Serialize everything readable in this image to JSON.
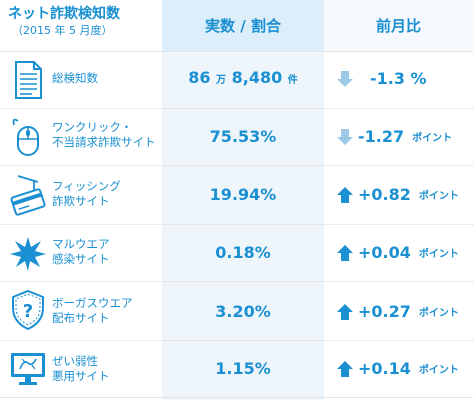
{
  "header": {
    "title": "ネット詐欺検知数",
    "subtitle": "（2015 年 5 月度）",
    "col_value": "実数 / 割合",
    "col_change": "前月比"
  },
  "rows": [
    {
      "label1": "総検知数",
      "label2": "",
      "value_num": "86",
      "value_man": "万",
      "value_rest": "8,480",
      "value_unit": "件",
      "change_dir": "down",
      "change": "-1.3 %",
      "change_unit": "",
      "icon": "document-icon"
    },
    {
      "label1": "ワンクリック・",
      "label2": "不当請求詐欺サイト",
      "value": "75.53%",
      "change_dir": "down",
      "change": "-1.27",
      "change_unit": "ポイント",
      "icon": "mouse-icon"
    },
    {
      "label1": "フィッシング",
      "label2": "詐欺サイト",
      "value": "19.94%",
      "change_dir": "up",
      "change": "+0.82",
      "change_unit": "ポイント",
      "icon": "fishing-hook-card-icon"
    },
    {
      "label1": "マルウエア",
      "label2": "感染サイト",
      "value": "0.18%",
      "change_dir": "up",
      "change": "+0.04",
      "change_unit": "ポイント",
      "icon": "burst-icon"
    },
    {
      "label1": "ボーガスウエア",
      "label2": "配布サイト",
      "value": "3.20%",
      "change_dir": "up",
      "change": "+0.27",
      "change_unit": "ポイント",
      "icon": "shield-question-icon"
    },
    {
      "label1": "ぜい弱性",
      "label2": "悪用サイト",
      "value": "1.15%",
      "change_dir": "up",
      "change": "+0.14",
      "change_unit": "ポイント",
      "icon": "broken-monitor-icon"
    }
  ],
  "colors": {
    "accent": "#1a8fd1",
    "arrow_down": "#9cc9e6",
    "arrow_up": "#1a8fd1"
  }
}
